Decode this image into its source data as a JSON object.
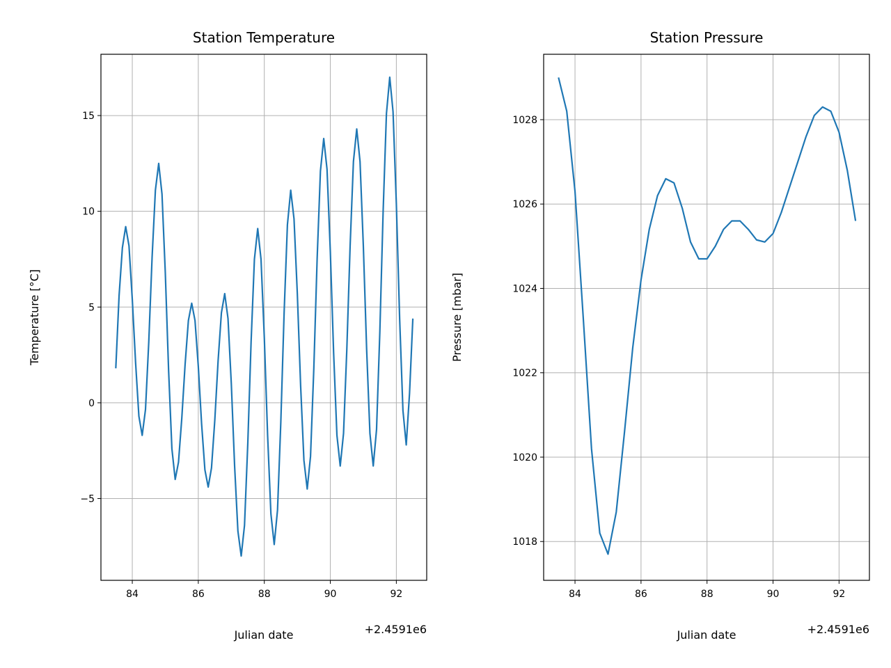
{
  "chart_data": [
    {
      "type": "line",
      "title": "Station Temperature",
      "xlabel": "Julian date",
      "ylabel": "Temperature [°C]",
      "x_offset_label": "+2.4591e6",
      "color": "#1f77b4",
      "grid": true,
      "xlim": [
        83.05,
        92.92
      ],
      "ylim": [
        -9.27,
        18.2
      ],
      "xticks": [
        84,
        86,
        88,
        90,
        92
      ],
      "yticks": [
        {
          "value": -5,
          "label": "−5"
        },
        0,
        5,
        10,
        15
      ],
      "x": [
        83.5,
        83.6,
        83.7,
        83.8,
        83.9,
        84.0,
        84.1,
        84.2,
        84.3,
        84.4,
        84.5,
        84.6,
        84.7,
        84.8,
        84.9,
        85.0,
        85.1,
        85.2,
        85.3,
        85.4,
        85.5,
        85.6,
        85.7,
        85.8,
        85.9,
        86.0,
        86.1,
        86.2,
        86.3,
        86.4,
        86.5,
        86.6,
        86.7,
        86.8,
        86.9,
        87.0,
        87.1,
        87.2,
        87.3,
        87.4,
        87.5,
        87.6,
        87.7,
        87.8,
        87.9,
        88.0,
        88.1,
        88.2,
        88.3,
        88.4,
        88.5,
        88.6,
        88.7,
        88.8,
        88.9,
        89.0,
        89.1,
        89.2,
        89.3,
        89.4,
        89.5,
        89.6,
        89.7,
        89.8,
        89.9,
        90.0,
        90.1,
        90.2,
        90.3,
        90.4,
        90.5,
        90.6,
        90.7,
        90.8,
        90.9,
        91.0,
        91.1,
        91.2,
        91.3,
        91.4,
        91.5,
        91.6,
        91.7,
        91.8,
        91.9,
        92.0,
        92.1,
        92.2,
        92.3,
        92.4,
        92.5
      ],
      "values": [
        1.8,
        5.6,
        8.1,
        9.2,
        8.2,
        5.4,
        2.1,
        -0.7,
        -1.7,
        -0.35,
        3.2,
        7.6,
        11.1,
        12.5,
        10.9,
        6.8,
        1.7,
        -2.4,
        -4.0,
        -3.1,
        -0.8,
        2.0,
        4.3,
        5.2,
        4.3,
        1.9,
        -1.1,
        -3.5,
        -4.4,
        -3.4,
        -0.9,
        2.2,
        4.7,
        5.7,
        4.4,
        1.0,
        -3.3,
        -6.7,
        -8.0,
        -6.4,
        -2.1,
        3.2,
        7.5,
        9.1,
        7.5,
        3.4,
        -1.7,
        -5.8,
        -7.4,
        -5.6,
        -1.0,
        4.7,
        9.3,
        11.1,
        9.6,
        5.7,
        0.9,
        -3.0,
        -4.5,
        -2.8,
        1.8,
        7.5,
        12.1,
        13.8,
        12.2,
        7.9,
        2.6,
        -1.7,
        -3.3,
        -1.6,
        2.8,
        8.2,
        12.6,
        14.3,
        12.6,
        8.2,
        2.8,
        -1.6,
        -3.3,
        -1.4,
        3.7,
        10.0,
        15.1,
        17.0,
        15.2,
        10.4,
        4.4,
        -0.4,
        -2.2,
        0.5,
        4.4
      ]
    },
    {
      "type": "line",
      "title": "Station Pressure",
      "xlabel": "Julian date",
      "ylabel": "Pressure [mbar]",
      "x_offset_label": "+2.4591e6",
      "color": "#1f77b4",
      "grid": true,
      "xlim": [
        83.05,
        92.92
      ],
      "ylim": [
        1017.08,
        1029.55
      ],
      "xticks": [
        84,
        86,
        88,
        90,
        92
      ],
      "yticks": [
        1018,
        1020,
        1022,
        1024,
        1026,
        1028
      ],
      "x": [
        83.5,
        83.75,
        84.0,
        84.25,
        84.5,
        84.75,
        85.0,
        85.25,
        85.5,
        85.75,
        86.0,
        86.25,
        86.5,
        86.75,
        87.0,
        87.25,
        87.5,
        87.75,
        88.0,
        88.25,
        88.5,
        88.75,
        89.0,
        89.25,
        89.5,
        89.75,
        90.0,
        90.25,
        90.5,
        90.75,
        91.0,
        91.25,
        91.5,
        91.75,
        92.0,
        92.25,
        92.5
      ],
      "values": [
        1029.0,
        1028.2,
        1026.3,
        1023.3,
        1020.2,
        1018.2,
        1017.7,
        1018.7,
        1020.6,
        1022.6,
        1024.2,
        1025.4,
        1026.2,
        1026.6,
        1026.5,
        1025.9,
        1025.1,
        1024.7,
        1024.7,
        1025.0,
        1025.4,
        1025.6,
        1025.6,
        1025.4,
        1025.15,
        1025.1,
        1025.3,
        1025.8,
        1026.4,
        1027.0,
        1027.6,
        1028.1,
        1028.3,
        1028.2,
        1027.7,
        1026.8,
        1025.6
      ]
    }
  ]
}
